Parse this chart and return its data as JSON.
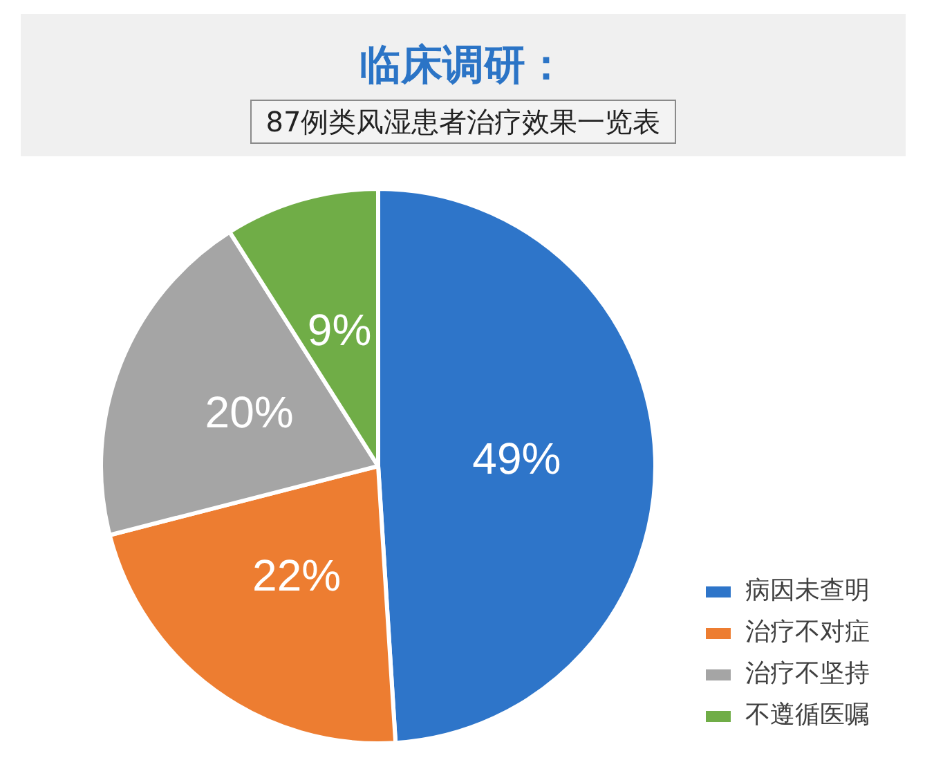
{
  "chart_data": {
    "type": "pie",
    "title": "临床调研：",
    "subtitle": "87例类风湿患者治疗效果一览表",
    "categories": [
      "病因未查明",
      "治疗不对症",
      "治疗不坚持",
      "不遵循医嘱"
    ],
    "values": [
      49,
      22,
      20,
      9
    ],
    "colors": [
      "#2e75c9",
      "#ed7d31",
      "#a5a5a5",
      "#70ad47"
    ],
    "value_labels": [
      "49%",
      "22%",
      "20%",
      "9%"
    ],
    "legend": "bottom right"
  }
}
